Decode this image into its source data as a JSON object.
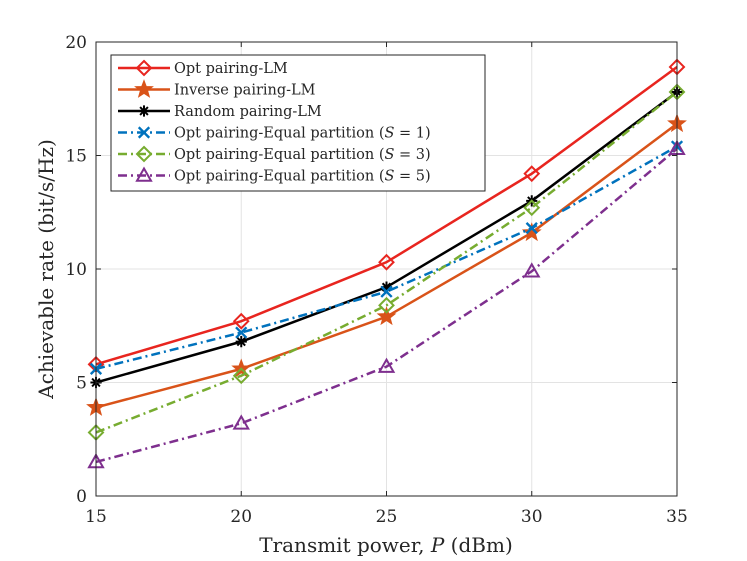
{
  "chart_data": {
    "type": "line",
    "title": "",
    "xlabel": "Transmit power, P (dBm)",
    "ylabel": "Achievable rate (bit/s/Hz)",
    "xlim": [
      15,
      35
    ],
    "ylim": [
      0,
      20
    ],
    "x": [
      15,
      20,
      25,
      30,
      35
    ],
    "xticks": [
      "15",
      "20",
      "25",
      "30",
      "35"
    ],
    "yticks": [
      "0",
      "5",
      "10",
      "15",
      "20"
    ],
    "grid": true,
    "legend_position": "top-left",
    "series": [
      {
        "name": "Opt pairing-LM",
        "legend_label": "Opt pairing-LM",
        "color": "#e8251f",
        "dash": "solid",
        "marker": "diamond",
        "values": [
          5.8,
          7.7,
          10.3,
          14.2,
          18.9
        ]
      },
      {
        "name": "Inverse pairing-LM",
        "legend_label": "Inverse pairing-LM",
        "color": "#d95319",
        "dash": "solid",
        "marker": "star",
        "values": [
          3.9,
          5.6,
          7.9,
          11.6,
          16.4
        ]
      },
      {
        "name": "Random pairing-LM",
        "legend_label": "Random pairing-LM",
        "color": "#000000",
        "dash": "solid",
        "marker": "asterisk",
        "values": [
          5.0,
          6.8,
          9.2,
          13.0,
          17.8
        ]
      },
      {
        "name": "Opt pairing-Equal partition (S = 1)",
        "legend_label": "Opt pairing-Equal partition (",
        "var": "S",
        "suffix": " = 1)",
        "color": "#0072bd",
        "dash": "dashdot",
        "marker": "x",
        "values": [
          5.6,
          7.2,
          9.0,
          11.8,
          15.4
        ]
      },
      {
        "name": "Opt pairing-Equal partition (S = 3)",
        "legend_label": "Opt pairing-Equal partition (",
        "var": "S",
        "suffix": " = 3)",
        "color": "#77ac30",
        "dash": "dashdot",
        "marker": "diamond",
        "values": [
          2.8,
          5.3,
          8.4,
          12.7,
          17.8
        ]
      },
      {
        "name": "Opt pairing-Equal partition (S = 5)",
        "legend_label": "Opt pairing-Equal partition (",
        "var": "S",
        "suffix": " = 5)",
        "color": "#7e2f8e",
        "dash": "dashdot",
        "marker": "triangle",
        "values": [
          1.5,
          3.2,
          5.7,
          9.9,
          15.3
        ]
      }
    ]
  }
}
